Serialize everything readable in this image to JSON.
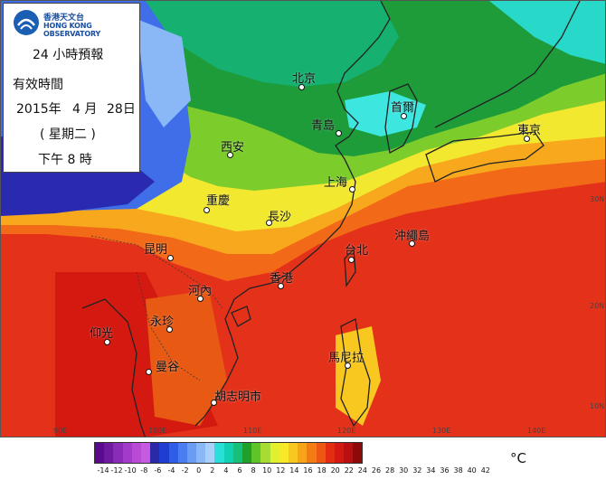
{
  "panel": {
    "logo_zh": "香港天文台",
    "logo_en": "HONG KONG OBSERVATORY",
    "title": "24 小時預報",
    "valid_label": "有效時間",
    "date_year": "2015年",
    "date_month": "4 月",
    "date_day": "28日",
    "weekday": "( 星期二 )",
    "time": "下午  8 時"
  },
  "cities": [
    {
      "name": "北京"
    },
    {
      "name": "青島"
    },
    {
      "name": "首爾"
    },
    {
      "name": "東京"
    },
    {
      "name": "西安"
    },
    {
      "name": "上海"
    },
    {
      "name": "重慶"
    },
    {
      "name": "長沙"
    },
    {
      "name": "沖繩島"
    },
    {
      "name": "昆明"
    },
    {
      "name": "台北"
    },
    {
      "name": "香港"
    },
    {
      "name": "河內"
    },
    {
      "name": "永珍"
    },
    {
      "name": "仰光"
    },
    {
      "name": "馬尼拉"
    },
    {
      "name": "曼谷"
    },
    {
      "name": "胡志明市"
    }
  ],
  "longitudes": [
    "90E",
    "100E",
    "110E",
    "120E",
    "130E",
    "140E"
  ],
  "latitudes": [
    "30N",
    "20N",
    "10N"
  ],
  "legend": {
    "unit": "°C",
    "ticks": [
      "-14",
      "-12",
      "-10",
      "-8",
      "-6",
      "-4",
      "-2",
      "0",
      "2",
      "4",
      "6",
      "8",
      "10",
      "12",
      "14",
      "16",
      "18",
      "20",
      "22",
      "24",
      "26",
      "28",
      "30",
      "32",
      "34",
      "36",
      "38",
      "40",
      "42"
    ],
    "colors": [
      "#5a0a8c",
      "#6e1aa0",
      "#8a2cb8",
      "#a23cc8",
      "#b84ad6",
      "#c65ae0",
      "#2a2aa8",
      "#1f3dd0",
      "#2f5ee6",
      "#4a7ef0",
      "#6a9cf4",
      "#8ab8f6",
      "#a8d0f8",
      "#28e0d8",
      "#12d0b4",
      "#16c07a",
      "#1ea02a",
      "#5ec428",
      "#a6dc34",
      "#e2f030",
      "#f8e828",
      "#f8c820",
      "#f8a418",
      "#f47c14",
      "#ee5614",
      "#e42c10",
      "#d41a10",
      "#b81010",
      "#8e0a0a"
    ]
  }
}
